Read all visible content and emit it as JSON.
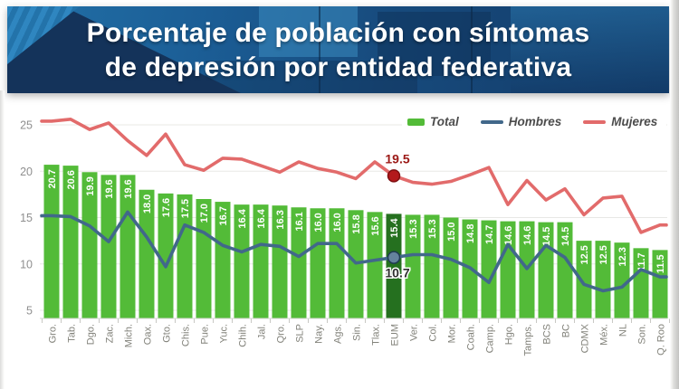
{
  "header": {
    "title_line1": "Porcentaje de población con síntomas",
    "title_line2": "de depresión por entidad federativa"
  },
  "legend": [
    {
      "label": "Total",
      "type": "bar",
      "color": "#53bb38"
    },
    {
      "label": "Hombres",
      "type": "line",
      "color": "#41688a"
    },
    {
      "label": "Mujeres",
      "type": "line",
      "color": "#e26b6b"
    }
  ],
  "chart_data": {
    "type": "combo-bar-line",
    "title": "Porcentaje de población con síntomas de depresión por entidad federativa",
    "categories": [
      "Gro.",
      "Tab.",
      "Dgo.",
      "Zac.",
      "Mich.",
      "Oax.",
      "Gto.",
      "Chis.",
      "Pue.",
      "Yuc.",
      "Chih.",
      "Jal.",
      "Qro.",
      "SLP",
      "Nay.",
      "Ags.",
      "Sin.",
      "Tlax.",
      "EUM",
      "Ver.",
      "Col.",
      "Mor.",
      "Coah.",
      "Camp.",
      "Hgo.",
      "Tamps.",
      "BCS",
      "BC",
      "CDMX",
      "Méx.",
      "NL",
      "Son.",
      "Q. Roo"
    ],
    "highlight_category": "EUM",
    "series": [
      {
        "name": "Total",
        "type": "bar",
        "color": "#53bb38",
        "highlight_color": "#25701f",
        "values": [
          20.7,
          20.6,
          19.9,
          19.6,
          19.6,
          18.0,
          17.6,
          17.5,
          17.0,
          16.7,
          16.4,
          16.4,
          16.3,
          16.1,
          16.0,
          16.0,
          15.8,
          15.6,
          15.4,
          15.3,
          15.3,
          15.0,
          14.8,
          14.7,
          14.6,
          14.6,
          14.5,
          14.5,
          12.5,
          12.5,
          12.3,
          11.7,
          11.5
        ]
      },
      {
        "name": "Hombres",
        "type": "line",
        "color": "#41688a",
        "values": [
          15.2,
          15.1,
          14.1,
          12.4,
          15.6,
          12.9,
          9.7,
          14.2,
          13.4,
          12.0,
          11.3,
          12.1,
          11.9,
          10.8,
          12.2,
          12.2,
          10.1,
          10.4,
          10.7,
          11.0,
          11.0,
          10.5,
          9.6,
          8.0,
          12.1,
          9.5,
          12.0,
          10.7,
          7.8,
          7.1,
          7.5,
          9.4,
          8.6
        ]
      },
      {
        "name": "Mujeres",
        "type": "line",
        "color": "#e26b6b",
        "values": [
          25.4,
          25.6,
          24.5,
          25.2,
          23.3,
          21.7,
          24.0,
          20.7,
          20.1,
          21.4,
          21.3,
          20.6,
          19.9,
          21.0,
          20.3,
          19.9,
          19.2,
          21.0,
          19.5,
          18.8,
          18.6,
          18.9,
          19.6,
          20.4,
          16.4,
          19.0,
          16.9,
          18.1,
          15.3,
          17.1,
          17.3,
          13.4,
          14.2
        ]
      }
    ],
    "annotations": [
      {
        "series": "Mujeres",
        "category": "EUM",
        "label": "19.5",
        "position": "above",
        "dot_color": "#b3191c",
        "dot_edge": "#7d0e10",
        "text_color": "#9c1a17"
      },
      {
        "series": "Hombres",
        "category": "EUM",
        "label": "10.7",
        "position": "below",
        "dot_color": "#64839d",
        "dot_edge": "#1f3a52",
        "text_color": "#2f2f2f"
      }
    ],
    "y_ticks": [
      5,
      10,
      15,
      20,
      25
    ],
    "ylim": [
      4.1,
      26.5
    ],
    "grid": true,
    "legend_position": "top-right",
    "bar_label_color": "#ffffff",
    "axis_label_color": "#82827a",
    "tick_label_color": "#8f8f8f"
  }
}
